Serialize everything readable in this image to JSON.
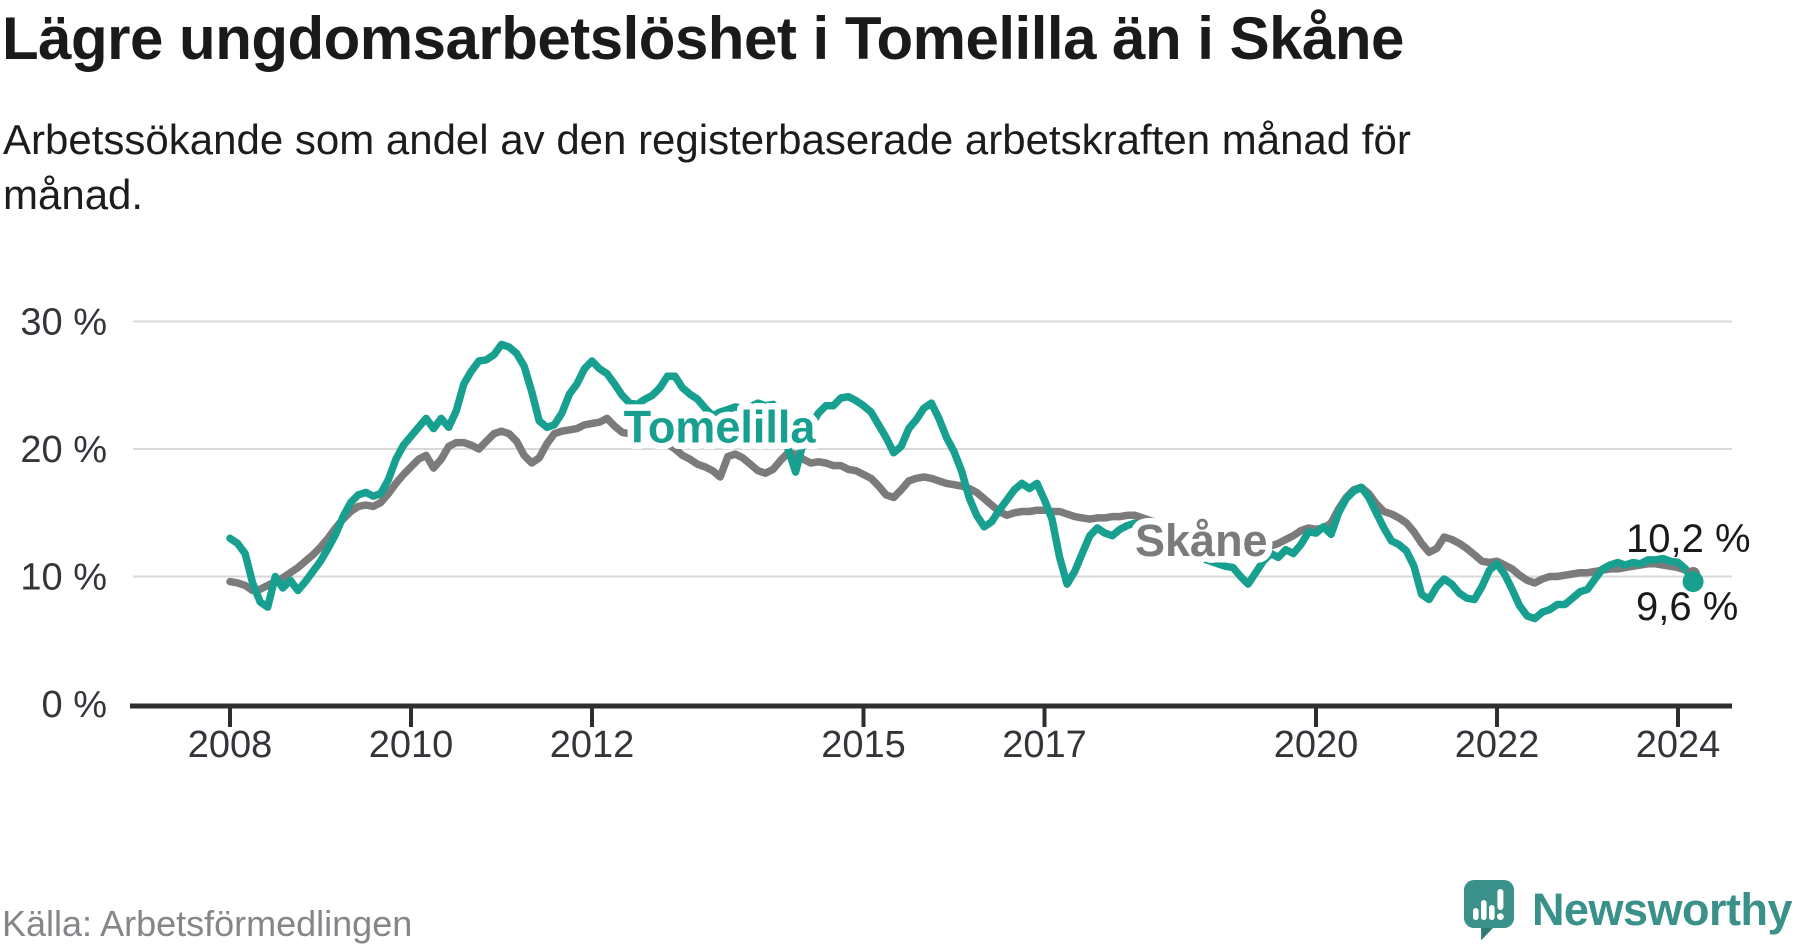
{
  "header": {
    "title": "Lägre ungdomsarbetslöshet i Tomelilla än i Skåne",
    "subtitle": "Arbetssökande som andel av den registerbaserade arbetskraften månad för månad."
  },
  "footer": {
    "source": "Källa: Arbetsförmedlingen",
    "brand_name": "Newsworthy"
  },
  "colors": {
    "tomelilla": "#17a08f",
    "skane": "#7b7b7b",
    "grid": "#d9d9d9",
    "axis": "#2e2e2e",
    "text_dark": "#1a1a1a",
    "tick_label": "#33353a",
    "source_text": "#85858a",
    "brand_teal": "#3a9189"
  },
  "chart_data": {
    "type": "line",
    "title": "Lägre ungdomsarbetslöshet i Tomelilla än i Skåne",
    "subtitle": "Arbetssökande som andel av den registerbaserade arbetskraften månad för månad.",
    "xlabel": "",
    "ylabel": "",
    "x_start_year": 2008,
    "x_interval_months": 1,
    "xlim": [
      2007.1,
      2024.6
    ],
    "ylim": [
      0,
      32
    ],
    "grid": "horizontal",
    "legend_position": "inline-labels",
    "yticks": [
      {
        "value": 30,
        "label": "30 %"
      },
      {
        "value": 20,
        "label": "20 %"
      },
      {
        "value": 10,
        "label": "10 %"
      },
      {
        "value": 0,
        "label": "0 %"
      }
    ],
    "xticks": [
      {
        "value": 2008,
        "label": "2008"
      },
      {
        "value": 2010,
        "label": "2010"
      },
      {
        "value": 2012,
        "label": "2012"
      },
      {
        "value": 2015,
        "label": "2015"
      },
      {
        "value": 2017,
        "label": "2017"
      },
      {
        "value": 2020,
        "label": "2020"
      },
      {
        "value": 2022,
        "label": "2022"
      },
      {
        "value": 2024,
        "label": "2024"
      }
    ],
    "series": [
      {
        "name": "Skåne",
        "color": "#7b7b7b",
        "inline_label": "Skåne",
        "inline_label_x": 2018.0,
        "inline_label_y": 11.6,
        "end_label": "10,2 %",
        "end_value": 10.2,
        "values": [
          9.6,
          9.5,
          9.3,
          8.9,
          9.0,
          9.3,
          9.6,
          9.9,
          10.3,
          10.7,
          11.2,
          11.7,
          12.3,
          13.0,
          13.8,
          14.5,
          15.1,
          15.5,
          15.6,
          15.5,
          15.8,
          16.5,
          17.3,
          18.0,
          18.6,
          19.2,
          19.5,
          18.5,
          19.2,
          20.2,
          20.5,
          20.5,
          20.3,
          20.0,
          20.6,
          21.2,
          21.4,
          21.2,
          20.6,
          19.5,
          18.9,
          19.3,
          20.4,
          21.2,
          21.4,
          21.5,
          21.6,
          21.9,
          22.0,
          22.1,
          22.4,
          21.8,
          21.3,
          21.2,
          21.2,
          20.9,
          21.0,
          20.7,
          20.4,
          20.0,
          19.5,
          19.2,
          18.8,
          18.6,
          18.3,
          17.8,
          19.4,
          19.6,
          19.3,
          18.8,
          18.3,
          18.1,
          18.4,
          19.1,
          19.7,
          19.6,
          19.2,
          18.9,
          19.0,
          18.9,
          18.7,
          18.7,
          18.4,
          18.3,
          18.0,
          17.7,
          17.1,
          16.4,
          16.2,
          16.8,
          17.5,
          17.7,
          17.8,
          17.7,
          17.5,
          17.3,
          17.2,
          17.1,
          16.9,
          16.6,
          16.1,
          15.6,
          15.1,
          14.8,
          15.0,
          15.1,
          15.1,
          15.2,
          15.2,
          15.1,
          15.1,
          14.9,
          14.7,
          14.6,
          14.5,
          14.6,
          14.6,
          14.7,
          14.7,
          14.8,
          14.8,
          14.6,
          14.4,
          14.2,
          14.0,
          13.8,
          13.6,
          13.4,
          13.2,
          13.0,
          12.8,
          12.6,
          12.5,
          12.4,
          12.3,
          12.2,
          12.3,
          12.3,
          12.4,
          12.6,
          12.9,
          13.2,
          13.6,
          13.8,
          13.7,
          13.8,
          14.2,
          15.3,
          16.2,
          16.8,
          17.0,
          16.5,
          15.7,
          15.1,
          14.9,
          14.6,
          14.2,
          13.5,
          12.6,
          11.9,
          12.2,
          13.1,
          12.9,
          12.6,
          12.2,
          11.7,
          11.2,
          11.1,
          11.2,
          10.9,
          10.6,
          10.1,
          9.7,
          9.5,
          9.8,
          10.0,
          10.0,
          10.1,
          10.2,
          10.3,
          10.3,
          10.4,
          10.5,
          10.6,
          10.6,
          10.7,
          10.8,
          10.9,
          11.0,
          11.0,
          10.9,
          10.8,
          10.7,
          10.5,
          10.2
        ]
      },
      {
        "name": "Tomelilla",
        "color": "#17a08f",
        "inline_label": "Tomelilla",
        "inline_label_x": 2012.35,
        "inline_label_y": 20.5,
        "end_label": "9,6 %",
        "end_value": 9.6,
        "values": [
          13.0,
          12.6,
          11.8,
          9.5,
          8.0,
          7.6,
          10.0,
          9.1,
          9.7,
          8.9,
          9.6,
          10.4,
          11.2,
          12.2,
          13.3,
          14.7,
          15.8,
          16.4,
          16.6,
          16.3,
          16.5,
          17.6,
          19.2,
          20.3,
          21.0,
          21.7,
          22.4,
          21.6,
          22.4,
          21.7,
          23.0,
          25.1,
          26.1,
          26.9,
          27.0,
          27.4,
          28.2,
          28.0,
          27.5,
          26.5,
          24.5,
          22.2,
          21.7,
          21.9,
          22.8,
          24.3,
          25.1,
          26.3,
          26.9,
          26.3,
          25.9,
          25.1,
          24.2,
          23.6,
          23.5,
          23.9,
          24.2,
          24.8,
          25.7,
          25.7,
          24.8,
          24.3,
          23.9,
          23.2,
          22.6,
          22.9,
          23.1,
          23.3,
          23.2,
          23.3,
          23.6,
          23.4,
          23.5,
          22.3,
          20.0,
          18.2,
          20.5,
          21.8,
          22.8,
          23.4,
          23.4,
          24.0,
          24.1,
          23.8,
          23.4,
          22.9,
          21.9,
          20.9,
          19.7,
          20.2,
          21.6,
          22.3,
          23.2,
          23.6,
          22.4,
          20.9,
          19.8,
          18.3,
          16.2,
          14.8,
          13.9,
          14.3,
          15.2,
          16.0,
          16.8,
          17.3,
          16.9,
          17.3,
          16.0,
          14.5,
          11.5,
          9.4,
          10.4,
          11.8,
          13.2,
          13.8,
          13.4,
          13.2,
          13.7,
          14.0,
          14.2,
          13.9,
          13.5,
          13.1,
          12.8,
          12.5,
          12.2,
          11.9,
          11.6,
          11.4,
          11.2,
          11.0,
          10.8,
          10.7,
          10.0,
          9.4,
          10.3,
          11.2,
          11.8,
          11.5,
          12.1,
          11.8,
          12.5,
          13.5,
          13.4,
          13.9,
          13.3,
          15.0,
          16.1,
          16.7,
          17.0,
          16.2,
          15.0,
          13.8,
          12.8,
          12.5,
          12.0,
          10.8,
          8.6,
          8.2,
          9.2,
          9.8,
          9.4,
          8.7,
          8.3,
          8.2,
          9.2,
          10.5,
          11.0,
          10.2,
          9.0,
          7.7,
          6.9,
          6.7,
          7.2,
          7.4,
          7.8,
          7.8,
          8.3,
          8.8,
          9.0,
          9.8,
          10.6,
          10.9,
          11.1,
          10.9,
          11.1,
          11.0,
          11.3,
          11.3,
          11.4,
          11.2,
          11.1,
          10.6,
          9.6
        ]
      }
    ]
  }
}
